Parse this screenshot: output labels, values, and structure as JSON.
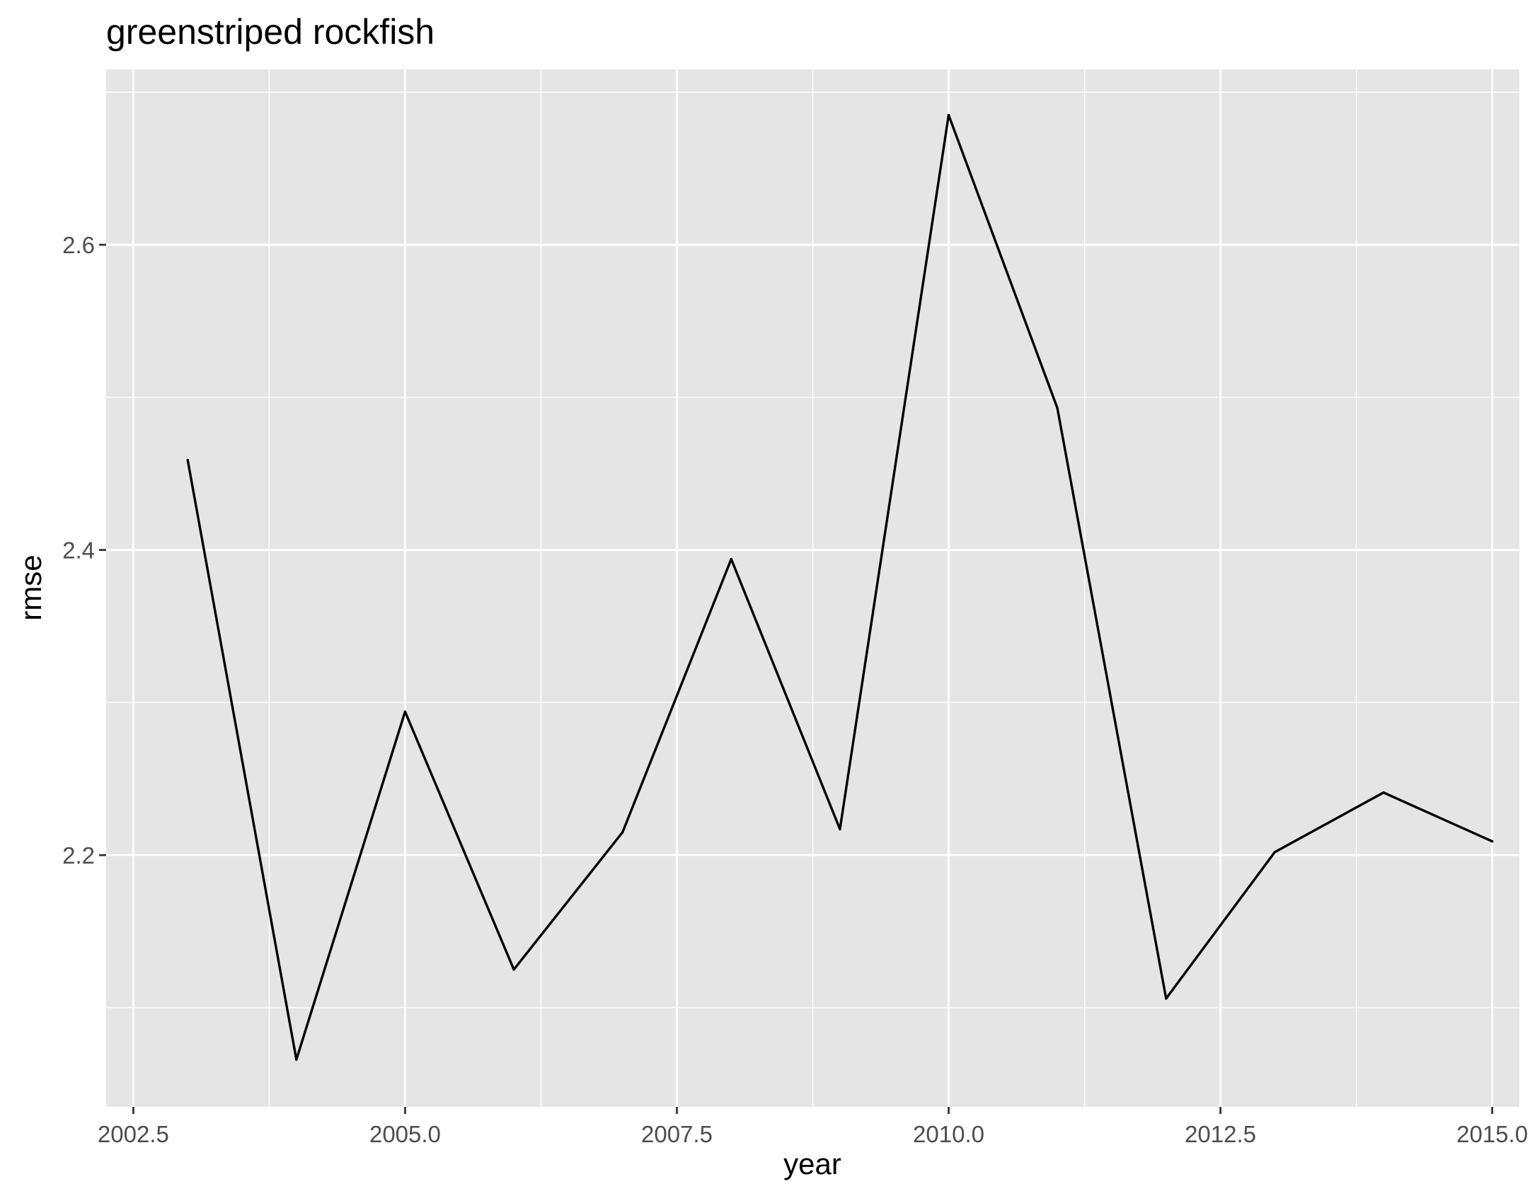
{
  "chart_data": {
    "type": "line",
    "title": "greenstriped rockfish",
    "xlabel": "year",
    "ylabel": "rmse",
    "xlim": [
      2002.25,
      2015.25
    ],
    "ylim": [
      2.035,
      2.715
    ],
    "x_ticks": [
      2002.5,
      2005.0,
      2007.5,
      2010.0,
      2012.5,
      2015.0
    ],
    "x_tick_labels": [
      "2002.5",
      "2005.0",
      "2007.5",
      "2010.0",
      "2012.5",
      "2015.0"
    ],
    "x_minor_ticks": [
      2003.75,
      2006.25,
      2008.75,
      2011.25,
      2013.75
    ],
    "y_ticks": [
      2.2,
      2.4,
      2.6
    ],
    "y_tick_labels": [
      "2.2",
      "2.4",
      "2.6"
    ],
    "y_minor_ticks": [
      2.1,
      2.3,
      2.5,
      2.7
    ],
    "grid": true,
    "legend": "none",
    "colors": {
      "panel_background": "#e5e5e5",
      "grid_line": "#ffffff",
      "series_line": "#000000",
      "tick_label": "#4d4d4d",
      "tick_mark": "#333333"
    },
    "series": [
      {
        "x": [
          2003,
          2004,
          2005,
          2006,
          2007,
          2008,
          2009,
          2010,
          2011,
          2012,
          2013,
          2014,
          2015
        ],
        "values": [
          2.459,
          2.066,
          2.294,
          2.125,
          2.215,
          2.394,
          2.217,
          2.685,
          2.493,
          2.106,
          2.202,
          2.241,
          2.209
        ]
      }
    ]
  }
}
